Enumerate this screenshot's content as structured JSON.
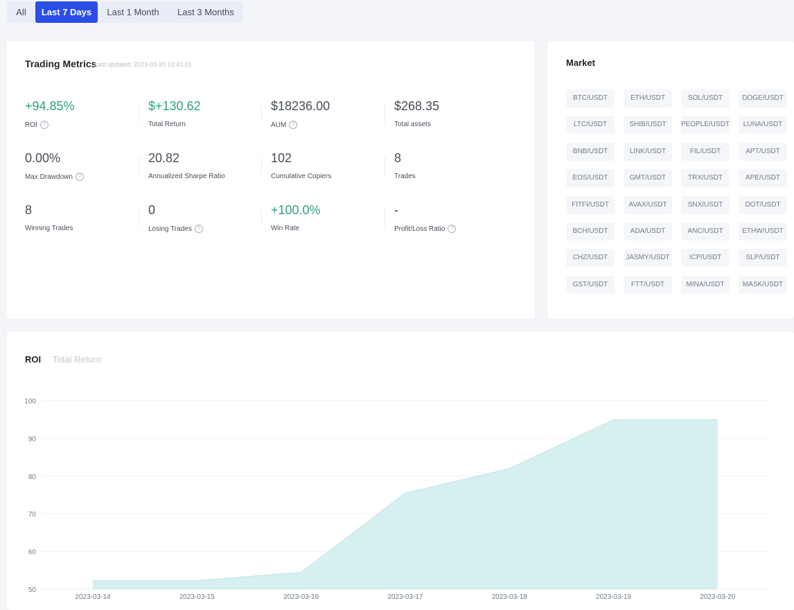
{
  "period_tabs": [
    {
      "label": "All",
      "active": false
    },
    {
      "label": "Last 7 Days",
      "active": true
    },
    {
      "label": "Last 1 Month",
      "active": false
    },
    {
      "label": "Last 3 Months",
      "active": false
    }
  ],
  "trading_metrics": {
    "title": "Trading Metrics",
    "last_updated": "Last updated: 2023-03-20 13:41:01",
    "metrics": [
      {
        "value": "+94.85%",
        "label": "ROI",
        "help": true,
        "positive": true
      },
      {
        "value": "$+130.62",
        "label": "Total Return",
        "help": false,
        "positive": true
      },
      {
        "value": "$18236.00",
        "label": "AUM",
        "help": true,
        "positive": false
      },
      {
        "value": "$268.35",
        "label": "Total assets",
        "help": false,
        "positive": false
      },
      {
        "value": "0.00%",
        "label": "Max Drawdown",
        "help": true,
        "positive": false
      },
      {
        "value": "20.82",
        "label": "Annualized Sharpe Ratio",
        "help": false,
        "positive": false
      },
      {
        "value": "102",
        "label": "Cumulative Copiers",
        "help": false,
        "positive": false
      },
      {
        "value": "8",
        "label": "Trades",
        "help": false,
        "positive": false
      },
      {
        "value": "8",
        "label": "Winning Trades",
        "help": false,
        "positive": false
      },
      {
        "value": "0",
        "label": "Losing Trades",
        "help": true,
        "positive": false
      },
      {
        "value": "+100.0%",
        "label": "Win Rate",
        "help": false,
        "positive": true
      },
      {
        "value": "-",
        "label": "Profit/Loss Ratio",
        "help": true,
        "positive": false
      }
    ]
  },
  "market": {
    "title": "Market",
    "pairs": [
      "BTC/USDT",
      "ETH/USDT",
      "SOL/USDT",
      "DOGE/USDT",
      "LTC/USDT",
      "SHIB/USDT",
      "PEOPLE/USDT",
      "LUNA/USDT",
      "BNB/USDT",
      "LINK/USDT",
      "FIL/USDT",
      "APT/USDT",
      "EOS/USDT",
      "GMT/USDT",
      "TRX/USDT",
      "APE/USDT",
      "FITFI/USDT",
      "AVAX/USDT",
      "SNX/USDT",
      "DOT/USDT",
      "BCH/USDT",
      "ADA/USDT",
      "ANC/USDT",
      "ETHW/USDT",
      "CHZ/USDT",
      "JASMY/USDT",
      "ICP/USDT",
      "SLP/USDT",
      "GST/USDT",
      "FTT/USDT",
      "MINA/USDT",
      "MASK/USDT"
    ]
  },
  "chart_tabs": [
    {
      "label": "ROI",
      "active": true
    },
    {
      "label": "Total Return",
      "active": false
    }
  ],
  "colors": {
    "accent": "#2a4ee6",
    "positive": "#2ea37a",
    "area_fill": "#d6efef",
    "area_line": "#c2e6e6"
  },
  "chart_data": {
    "type": "area",
    "x": [
      "2023-03-14",
      "2023-03-15",
      "2023-03-16",
      "2023-03-17",
      "2023-03-18",
      "2023-03-19",
      "2023-03-20"
    ],
    "values": [
      52.3,
      52.3,
      54.5,
      75.5,
      82.0,
      95.0,
      95.0
    ],
    "y_ticks": [
      50,
      60,
      70,
      80,
      90,
      100
    ],
    "ylim": [
      50,
      100
    ],
    "grid": true
  }
}
